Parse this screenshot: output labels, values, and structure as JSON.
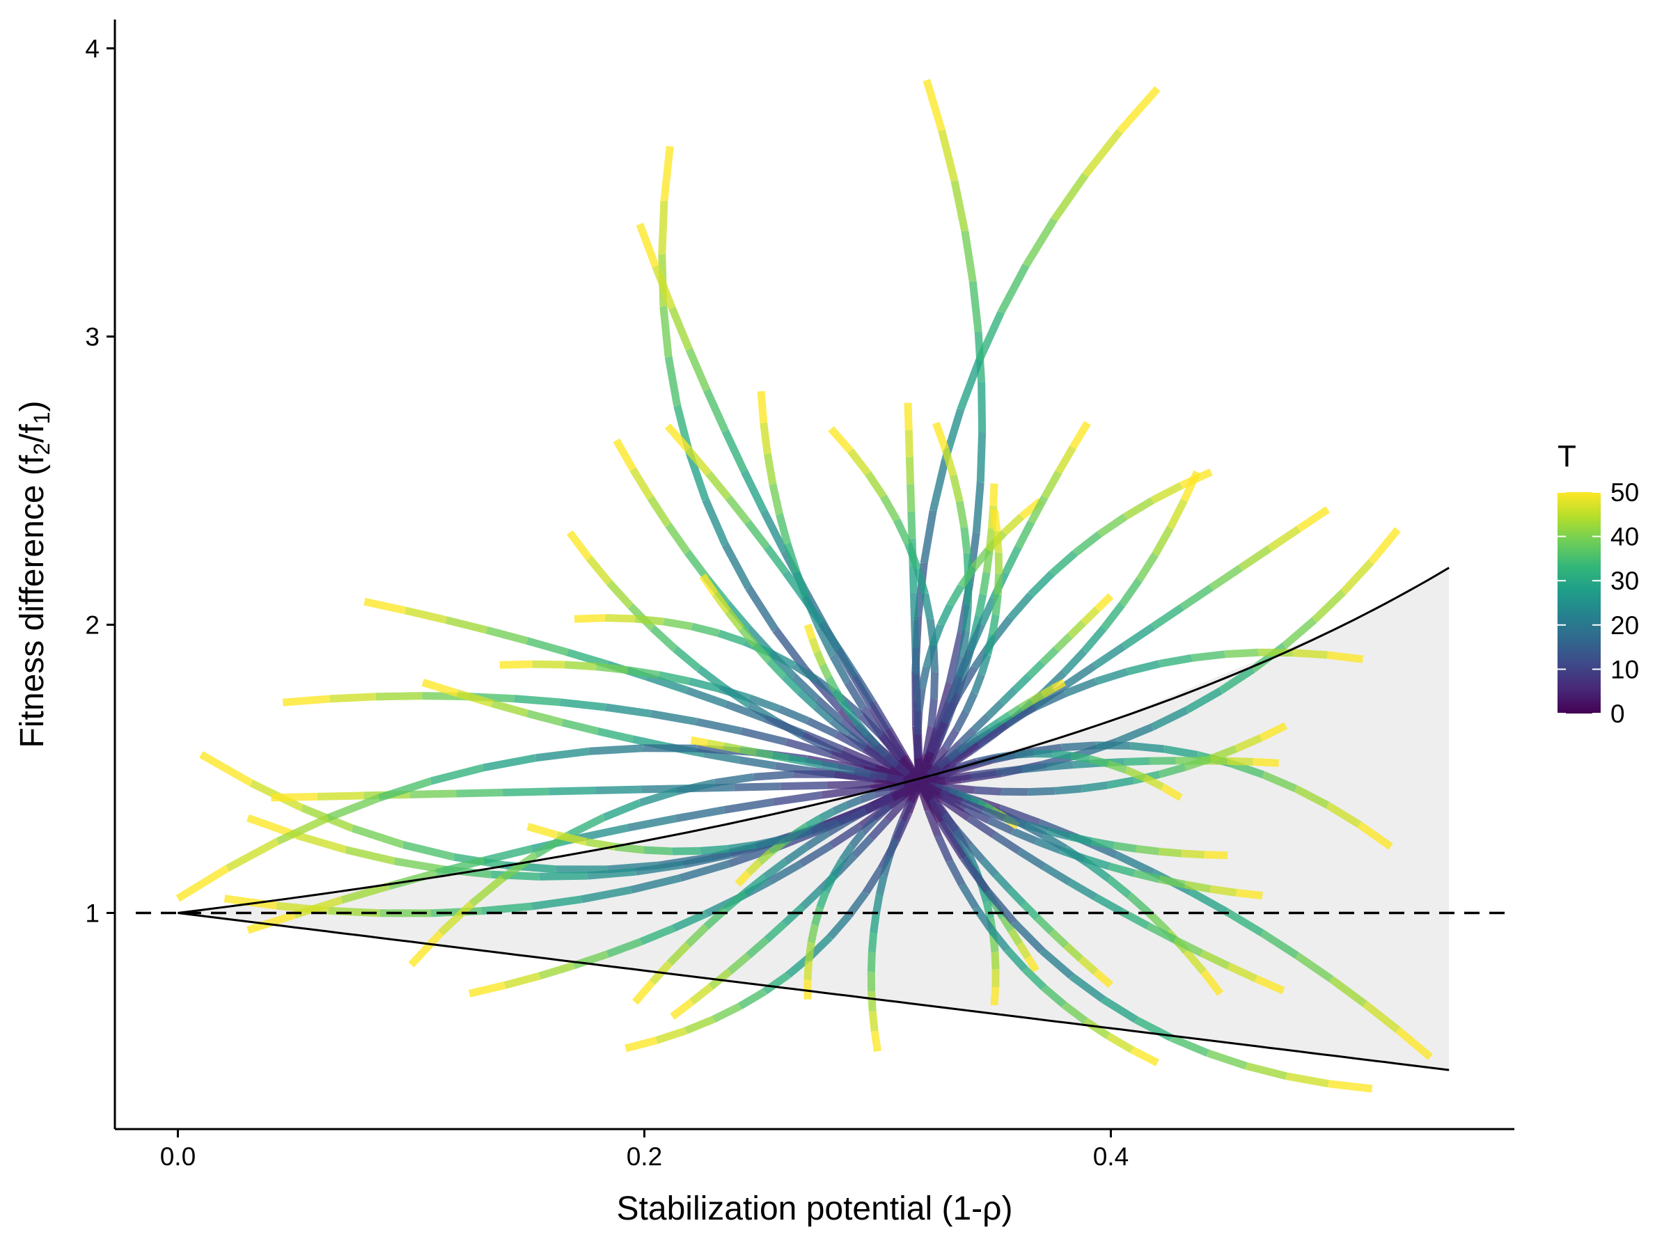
{
  "chart_data": {
    "type": "line",
    "title": "",
    "xlabel": "Stabilization potential (1-ρ)",
    "ylabel": "Fitness difference (f2/f1)",
    "ylabel_parts": {
      "main": "Fitness difference (f",
      "sub1": "2",
      "slash": "/f",
      "sub2": "1",
      "close": ")"
    },
    "xlim": [
      -0.027,
      0.573
    ],
    "ylim": [
      0.25,
      4.1
    ],
    "x_ticks": [
      0.0,
      0.2,
      0.4
    ],
    "x_tick_labels": [
      "0.0",
      "0.2",
      "0.4"
    ],
    "y_ticks": [
      1,
      2,
      3,
      4
    ],
    "y_tick_labels": [
      "1",
      "2",
      "3",
      "4"
    ],
    "grid": false,
    "legend_position": "right",
    "legend": {
      "title": "T",
      "palette": "viridis",
      "min": 0,
      "max": 50,
      "ticks": [
        0,
        10,
        20,
        30,
        40,
        50
      ],
      "tick_labels": [
        "0",
        "10",
        "20",
        "30",
        "40",
        "50"
      ]
    },
    "reference_line": {
      "y": 1,
      "style": "dashed"
    },
    "coexistence_region": {
      "fill": "#eeeeee",
      "upper_boundary": {
        "x": [
          0,
          0.1,
          0.2,
          0.3,
          0.4,
          0.5,
          0.545
        ],
        "y": [
          1,
          1.111,
          1.25,
          1.429,
          1.667,
          2.0,
          2.198
        ]
      },
      "lower_boundary": {
        "x": [
          0,
          0.1,
          0.2,
          0.3,
          0.4,
          0.5,
          0.545
        ],
        "y": [
          1,
          0.9,
          0.8,
          0.7,
          0.6,
          0.5,
          0.455
        ]
      }
    },
    "trajectories_origin": {
      "x": 0.318,
      "y": 1.45
    },
    "trajectories_endpoints": [
      {
        "x": 0.211,
        "y": 3.66
      },
      {
        "x": 0.198,
        "y": 3.39
      },
      {
        "x": 0.321,
        "y": 3.89
      },
      {
        "x": 0.42,
        "y": 3.86
      },
      {
        "x": 0.313,
        "y": 2.77
      },
      {
        "x": 0.325,
        "y": 2.7
      },
      {
        "x": 0.25,
        "y": 2.81
      },
      {
        "x": 0.21,
        "y": 2.69
      },
      {
        "x": 0.28,
        "y": 2.68
      },
      {
        "x": 0.188,
        "y": 2.64
      },
      {
        "x": 0.35,
        "y": 2.49
      },
      {
        "x": 0.37,
        "y": 2.43
      },
      {
        "x": 0.39,
        "y": 2.7
      },
      {
        "x": 0.437,
        "y": 2.53
      },
      {
        "x": 0.443,
        "y": 2.53
      },
      {
        "x": 0.493,
        "y": 2.4
      },
      {
        "x": 0.523,
        "y": 2.33
      },
      {
        "x": 0.168,
        "y": 2.32
      },
      {
        "x": 0.08,
        "y": 2.08
      },
      {
        "x": 0.17,
        "y": 2.02
      },
      {
        "x": 0.225,
        "y": 2.17
      },
      {
        "x": 0.045,
        "y": 1.73
      },
      {
        "x": 0.01,
        "y": 1.55
      },
      {
        "x": 0.105,
        "y": 1.8
      },
      {
        "x": 0.138,
        "y": 1.86
      },
      {
        "x": 0.03,
        "y": 1.33
      },
      {
        "x": 0.04,
        "y": 1.4
      },
      {
        "x": 0.0,
        "y": 1.05
      },
      {
        "x": 0.02,
        "y": 1.05
      },
      {
        "x": 0.03,
        "y": 0.94
      },
      {
        "x": 0.1,
        "y": 0.82
      },
      {
        "x": 0.125,
        "y": 0.72
      },
      {
        "x": 0.196,
        "y": 0.69
      },
      {
        "x": 0.192,
        "y": 0.53
      },
      {
        "x": 0.212,
        "y": 0.64
      },
      {
        "x": 0.3,
        "y": 0.52
      },
      {
        "x": 0.35,
        "y": 0.68
      },
      {
        "x": 0.368,
        "y": 0.8
      },
      {
        "x": 0.42,
        "y": 0.48
      },
      {
        "x": 0.447,
        "y": 0.72
      },
      {
        "x": 0.474,
        "y": 0.73
      },
      {
        "x": 0.512,
        "y": 0.39
      },
      {
        "x": 0.537,
        "y": 0.5
      },
      {
        "x": 0.465,
        "y": 1.06
      },
      {
        "x": 0.52,
        "y": 1.23
      },
      {
        "x": 0.472,
        "y": 1.52
      },
      {
        "x": 0.475,
        "y": 1.65
      },
      {
        "x": 0.508,
        "y": 1.88
      },
      {
        "x": 0.4,
        "y": 2.1
      },
      {
        "x": 0.35,
        "y": 2.4
      },
      {
        "x": 0.27,
        "y": 2.0
      },
      {
        "x": 0.4,
        "y": 0.75
      },
      {
        "x": 0.27,
        "y": 0.7
      },
      {
        "x": 0.36,
        "y": 1.3
      },
      {
        "x": 0.45,
        "y": 1.2
      },
      {
        "x": 0.43,
        "y": 1.4
      },
      {
        "x": 0.38,
        "y": 1.8
      },
      {
        "x": 0.24,
        "y": 1.1
      },
      {
        "x": 0.15,
        "y": 1.3
      },
      {
        "x": 0.22,
        "y": 1.6
      }
    ]
  }
}
